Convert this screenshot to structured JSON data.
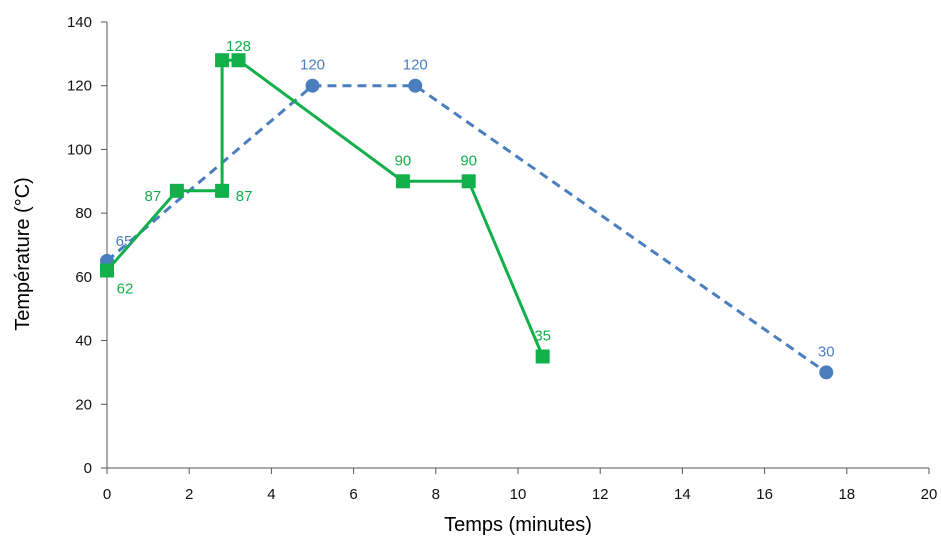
{
  "chart_data": {
    "type": "line",
    "title": "",
    "xlabel": "Temps (minutes)",
    "ylabel": "Température (°C)",
    "xlim": [
      0,
      20
    ],
    "ylim": [
      0,
      140
    ],
    "x_ticks": [
      "0",
      "2",
      "4",
      "6",
      "8",
      "10",
      "12",
      "14",
      "16",
      "18",
      "20"
    ],
    "y_ticks": [
      "0",
      "20",
      "40",
      "60",
      "80",
      "100",
      "120",
      "140"
    ],
    "grid": false,
    "legend": "none",
    "series": [
      {
        "marker": "square",
        "line": "solid",
        "color": "#12b04b",
        "points": [
          {
            "x": 0,
            "y": 62,
            "label": "62"
          },
          {
            "x": 1.7,
            "y": 87,
            "label": "87"
          },
          {
            "x": 2.8,
            "y": 87,
            "label": "87"
          },
          {
            "x": 2.8,
            "y": 128,
            "label": ""
          },
          {
            "x": 3.2,
            "y": 128,
            "label": "128"
          },
          {
            "x": 7.2,
            "y": 90,
            "label": "90"
          },
          {
            "x": 8.8,
            "y": 90,
            "label": "90"
          },
          {
            "x": 10.6,
            "y": 35,
            "label": "35"
          }
        ]
      },
      {
        "marker": "circle",
        "line": "dashed",
        "color": "#4a7ebf",
        "points": [
          {
            "x": 0,
            "y": 65,
            "label": "65"
          },
          {
            "x": 5,
            "y": 120,
            "label": "120"
          },
          {
            "x": 7.5,
            "y": 120,
            "label": "120"
          },
          {
            "x": 17.5,
            "y": 30,
            "label": "30"
          }
        ]
      }
    ]
  }
}
